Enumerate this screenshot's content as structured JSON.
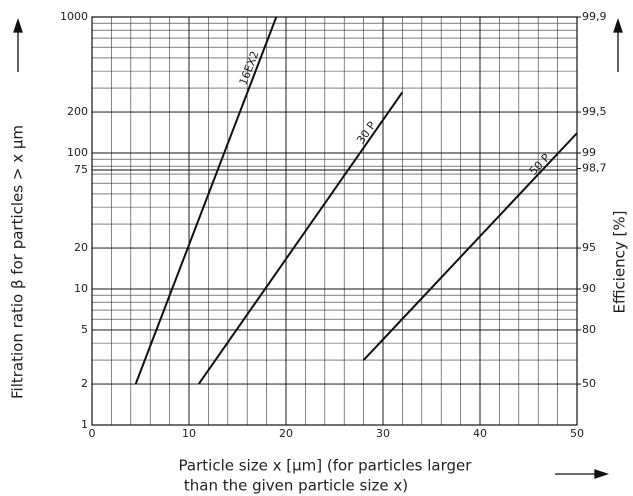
{
  "chart_data": {
    "type": "line",
    "ylabel": "Filtration ratio β for particles > x µm",
    "y2label": "Efficiency [%]",
    "xlabel": [
      "Particle size x [µm] (for particles larger",
      "than the given particle size x)"
    ],
    "xlim": [
      0,
      50
    ],
    "xticks": [
      0,
      10,
      20,
      30,
      40,
      50
    ],
    "ylim": [
      1,
      1000
    ],
    "yticks": [
      1,
      2,
      5,
      10,
      20,
      75,
      100,
      200,
      1000
    ],
    "log_y": true,
    "y2lim": [
      0,
      99.9
    ],
    "y2ticks": [
      50,
      80,
      90,
      95,
      {
        "value": 98.7,
        "label": "98,7"
      },
      99,
      {
        "value": 99.5,
        "label": "99,5"
      },
      {
        "value": 99.9,
        "label": "99,9"
      }
    ],
    "grid": true,
    "minor_grid": true,
    "series": [
      {
        "name": "16EX2",
        "color": "#111111",
        "x": [
          4.5,
          19
        ],
        "values": [
          2,
          1000
        ]
      },
      {
        "name": "30 P",
        "color": "#111111",
        "x": [
          11,
          32
        ],
        "values": [
          2,
          280
        ]
      },
      {
        "name": "50 P",
        "color": "#111111",
        "x": [
          28,
          50
        ],
        "values": [
          3,
          140
        ]
      }
    ]
  }
}
